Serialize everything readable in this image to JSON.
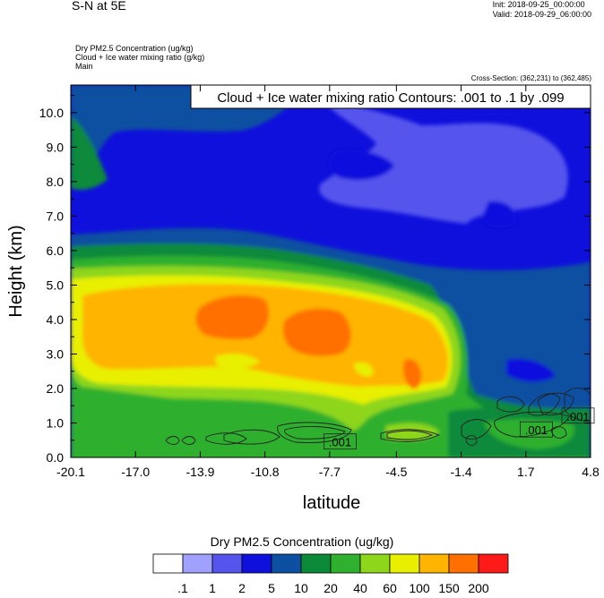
{
  "header": {
    "title": "S-N at 5E",
    "init": "Init: 2018-09-25_00:00:00",
    "valid": "Valid: 2018-09-29_06:00:00",
    "var1": "Dry PM2.5 Concentration   (ug/kg)",
    "var2": "Cloud + Ice water mixing ratio   (g/kg)",
    "var3": "Main",
    "cross_section": "Cross-Section: (362,231) to (362,485)"
  },
  "chart_data": {
    "type": "heatmap",
    "title": "S-N at 5E",
    "xlabel": "latitude",
    "ylabel": "Height (km)",
    "x_ticks": [
      "-20.1",
      "-17.0",
      "-13.9",
      "-10.8",
      "-7.7",
      "-4.5",
      "-1.4",
      "1.7",
      "4.8"
    ],
    "x_range": [
      -20.1,
      4.8
    ],
    "y_ticks": [
      "0.0",
      "1.0",
      "2.0",
      "3.0",
      "4.0",
      "5.0",
      "6.0",
      "7.0",
      "8.0",
      "9.0",
      "10.0"
    ],
    "y_range": [
      0,
      10.8
    ],
    "contour_info": "Cloud + Ice water mixing ratio Contours: .001 to .1 by .099",
    "contour_labels": [
      {
        "text": ".001",
        "lat": -7.2,
        "height": 0.45
      },
      {
        "text": ".001",
        "lat": 2.2,
        "height": 0.8
      },
      {
        "text": ".001",
        "lat": 4.2,
        "height": 1.2
      }
    ],
    "colorbar": {
      "title": "Dry PM2.5 Concentration  (ug/kg)",
      "labels": [
        ".1",
        "1",
        "2",
        "5",
        "10",
        "20",
        "40",
        "60",
        "100",
        "150",
        "200"
      ],
      "colors": [
        "#ffffff",
        "#a0a0ff",
        "#5555ee",
        "#1010dd",
        "#0d4fa0",
        "#0b8a3a",
        "#2fb02f",
        "#8ed61c",
        "#e8f000",
        "#ffb400",
        "#ff7000",
        "#ff1a1a"
      ]
    }
  }
}
